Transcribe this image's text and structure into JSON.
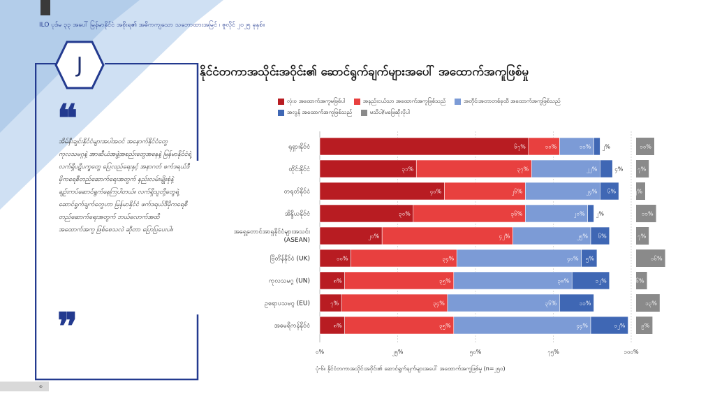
{
  "header": {
    "text": "ILO ပုဒ်မ ၃၃ အပေါ် မြန်မာနိုင်ငံ အစိုးရ၏ အဓိကကျသော သဘောထားအမြင် ၊ ဇူလိုင် ၂၀၂၅ ခုနှစ်။"
  },
  "section_badge": "J",
  "quote": {
    "open": "❝",
    "close": "❞",
    "text": "အိမ်နီးချင်းနိုင်ငံများအပါအဝင် အနောက်နိုင်ငံတွေ ကုလသမဂ္ဂနဲ့ အာဆီယံအဖွဲ့အစည်းတွေအနေနဲ့ မြန်မာနိုင်ငံရဲ့ လက်ရှိပဋိပက္ခတွေ ပြေလည်ရေးနှင့် အနာဂတ် ဖက်ဒရယ်ဒီမိုကရေစီတည်ဆောက်ရေးအတွက် နည်းလမ်းမျိုးစုံနဲ့ ချဉ်းကပ်ဆောင်ရွက်နေကြပါတယ်။ လက်ရှိသူတို့တွေရဲ့ ဆောင်ရွက်ချက်တွေဟာ မြန်မာနိုင်ငံ ဖက်ဒရယ်ဒီမိုကရေစီ တည်ဆောက်ရေးအတွက် ဘယ်လောက်အထိ အထောက်အကူ ဖြစ်စေသလဲ ဆိုတာ ပြောပြပေးပါ။"
  },
  "page_number": "၈",
  "colors": {
    "c1": "#b81c22",
    "c2": "#e8403f",
    "c3": "#7c9bd6",
    "c4": "#3f67b4",
    "c5": "#8a8a8a",
    "navy": "#233a8f"
  },
  "chart_data": {
    "type": "bar",
    "orientation": "horizontal",
    "stacked": true,
    "title": "နိုင်ငံတကာအသိုင်းအဝိုင်း၏ ဆောင်ရွက်ချက်များအပေါ် အထောက်အကူဖြစ်မှု",
    "caption": "ပုံ-၆။ နိုင်ငံတကာအသိုင်းအဝိုင်း၏ ဆောင်ရွက်ချက်များအပေါ် အထောက်အကူဖြစ်မှု (n=၂၅၀)",
    "categories": [
      "ရုရှားနိုင်ငံ",
      "ထိုင်းနိုင်ငံ",
      "တရုတ်နိုင်ငံ",
      "အိန္ဒိယနိုင်ငံ",
      "အရှေ့တောင်အာရှနိုင်ငံများအသင်း",
      "ဗြိတိန်နိုင်ငံ (UK)",
      "ကုလသမဂ္ဂ (UN)",
      "ဥရောပသမဂ္ဂ (EU)",
      "အမေရိကန်နိုင်ငံ"
    ],
    "categories_line2": [
      "",
      "",
      "",
      "",
      "(ASEAN)",
      "",
      "",
      "",
      ""
    ],
    "series": [
      {
        "name": "လုံးဝ အထောက်အကူမဖြစ်ပါ",
        "values": [
          67,
          31,
          40,
          30,
          20,
          10,
          8,
          7,
          8
        ],
        "labels": [
          "၆၇%",
          "၃၁%",
          "၄၀%",
          "၃၀%",
          "၂၀%",
          "၁၀%",
          "၈%",
          "၇%",
          "၈%"
        ]
      },
      {
        "name": "အနည်းငယ်သာ အထောက်အကူဖြစ်သည်",
        "values": [
          10,
          37,
          26,
          36,
          42,
          34,
          35,
          34,
          35
        ],
        "labels": [
          "၁၀%",
          "၃၇%",
          "၂၆%",
          "၃၆%",
          "၄၂%",
          "၃၄%",
          "၃၅%",
          "၃၄%",
          "၃၅%"
        ]
      },
      {
        "name": "အတိုင်းအတာတစ်ခုထိ အထောက်အကူဖြစ်သည်",
        "values": [
          11,
          22,
          24,
          20,
          25,
          40,
          38,
          36,
          44
        ],
        "labels": [
          "၁၁%",
          "၂၂%",
          "၂၄%",
          "၂၀%",
          "၂၅%",
          "၄၀%",
          "၃၈%",
          "၃၆%",
          "၄၄%"
        ]
      },
      {
        "name": "အလွန် အထောက်အကူဖြစ်သည်",
        "values": [
          2,
          4,
          6,
          2,
          6,
          5,
          12,
          11,
          12
        ],
        "labels": [
          "၂%",
          "၄%",
          "၆%",
          "၂%",
          "၆%",
          "၅%",
          "၁၂%",
          "၁၁%",
          "၁၂%"
        ]
      },
      {
        "name": "မသိပါ/မဖြေဆိုလိုပါ",
        "values": [
          10,
          7,
          5,
          11,
          7,
          16,
          6,
          13,
          9
        ],
        "labels": [
          "၁၀%",
          "၇%",
          "၅%",
          "၁၁%",
          "၇%",
          "၁၆%",
          "၆%",
          "၁၃%",
          "၉%"
        ]
      }
    ],
    "xticks": [
      0,
      25,
      50,
      75,
      100
    ],
    "xtick_labels": [
      "၀%",
      "၂၅%",
      "၅၀%",
      "၇၅%",
      "၁၀၀%"
    ],
    "xlim": [
      0,
      100
    ],
    "grid": true,
    "legend_position": "top"
  }
}
